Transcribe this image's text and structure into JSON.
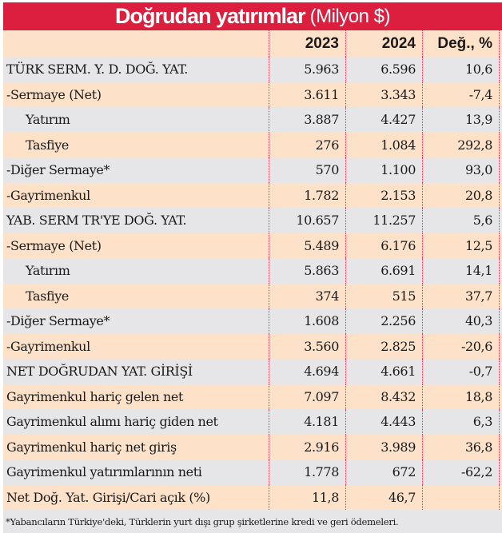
{
  "title": {
    "main": "Doğrudan yatırımlar",
    "unit": "(Milyon $)"
  },
  "colors": {
    "title_bg": "#dc1f3e",
    "row_peach": "#fde1c9",
    "row_gray": "#e6e6e8",
    "separator": "#e03a50"
  },
  "header": {
    "label": "",
    "col_2023": "2023",
    "col_2024": "2024",
    "col_change": "Değ., %"
  },
  "rows": [
    {
      "label": "TÜRK SERM. Y. D. DOĞ. YAT.",
      "v2023": "5.963",
      "v2024": "6.596",
      "change": "10,6"
    },
    {
      "label": "-Sermaye (Net)",
      "v2023": "3.611",
      "v2024": "3.343",
      "change": "-7,4"
    },
    {
      "label": "Yatırım",
      "v2023": "3.887",
      "v2024": "4.427",
      "change": "13,9"
    },
    {
      "label": "Tasfiye",
      "v2023": "276",
      "v2024": "1.084",
      "change": "292,8"
    },
    {
      "label": "-Diğer Sermaye*",
      "v2023": "570",
      "v2024": "1.100",
      "change": "93,0"
    },
    {
      "label": "-Gayrimenkul",
      "v2023": "1.782",
      "v2024": "2.153",
      "change": "20,8"
    },
    {
      "label": "YAB. SERM TR'YE DOĞ. YAT.",
      "v2023": "10.657",
      "v2024": "11.257",
      "change": "5,6"
    },
    {
      "label": "-Sermaye (Net)",
      "v2023": "5.489",
      "v2024": "6.176",
      "change": "12,5"
    },
    {
      "label": "Yatırım",
      "v2023": "5.863",
      "v2024": "6.691",
      "change": "14,1"
    },
    {
      "label": "Tasfiye",
      "v2023": "374",
      "v2024": "515",
      "change": "37,7"
    },
    {
      "label": "-Diğer Sermaye*",
      "v2023": "1.608",
      "v2024": "2.256",
      "change": "40,3"
    },
    {
      "label": "-Gayrimenkul",
      "v2023": "3.560",
      "v2024": "2.825",
      "change": "-20,6"
    },
    {
      "label": "NET DOĞRUDAN YAT. GİRİŞİ",
      "v2023": "4.694",
      "v2024": "4.661",
      "change": "-0,7"
    },
    {
      "label": "Gayrimenkul hariç gelen net",
      "v2023": "7.097",
      "v2024": "8.432",
      "change": "18,8"
    },
    {
      "label": "Gayrimenkul alımı hariç giden net",
      "v2023": "4.181",
      "v2024": "4.443",
      "change": "6,3"
    },
    {
      "label": "Gayrimenkul hariç net giriş",
      "v2023": "2.916",
      "v2024": "3.989",
      "change": "36,8"
    },
    {
      "label": "Gayrimenkul yatırımlarının neti",
      "v2023": "1.778",
      "v2024": "672",
      "change": "-62,2"
    },
    {
      "label": "Net Doğ. Yat. Girişi/Cari açık (%)",
      "v2023": "11,8",
      "v2024": "46,7",
      "change": ""
    }
  ],
  "footnote": "*Yabancıların Türkiye'deki, Türklerin yurt dışı grup şirketlerine kredi ve geri ödemeleri."
}
